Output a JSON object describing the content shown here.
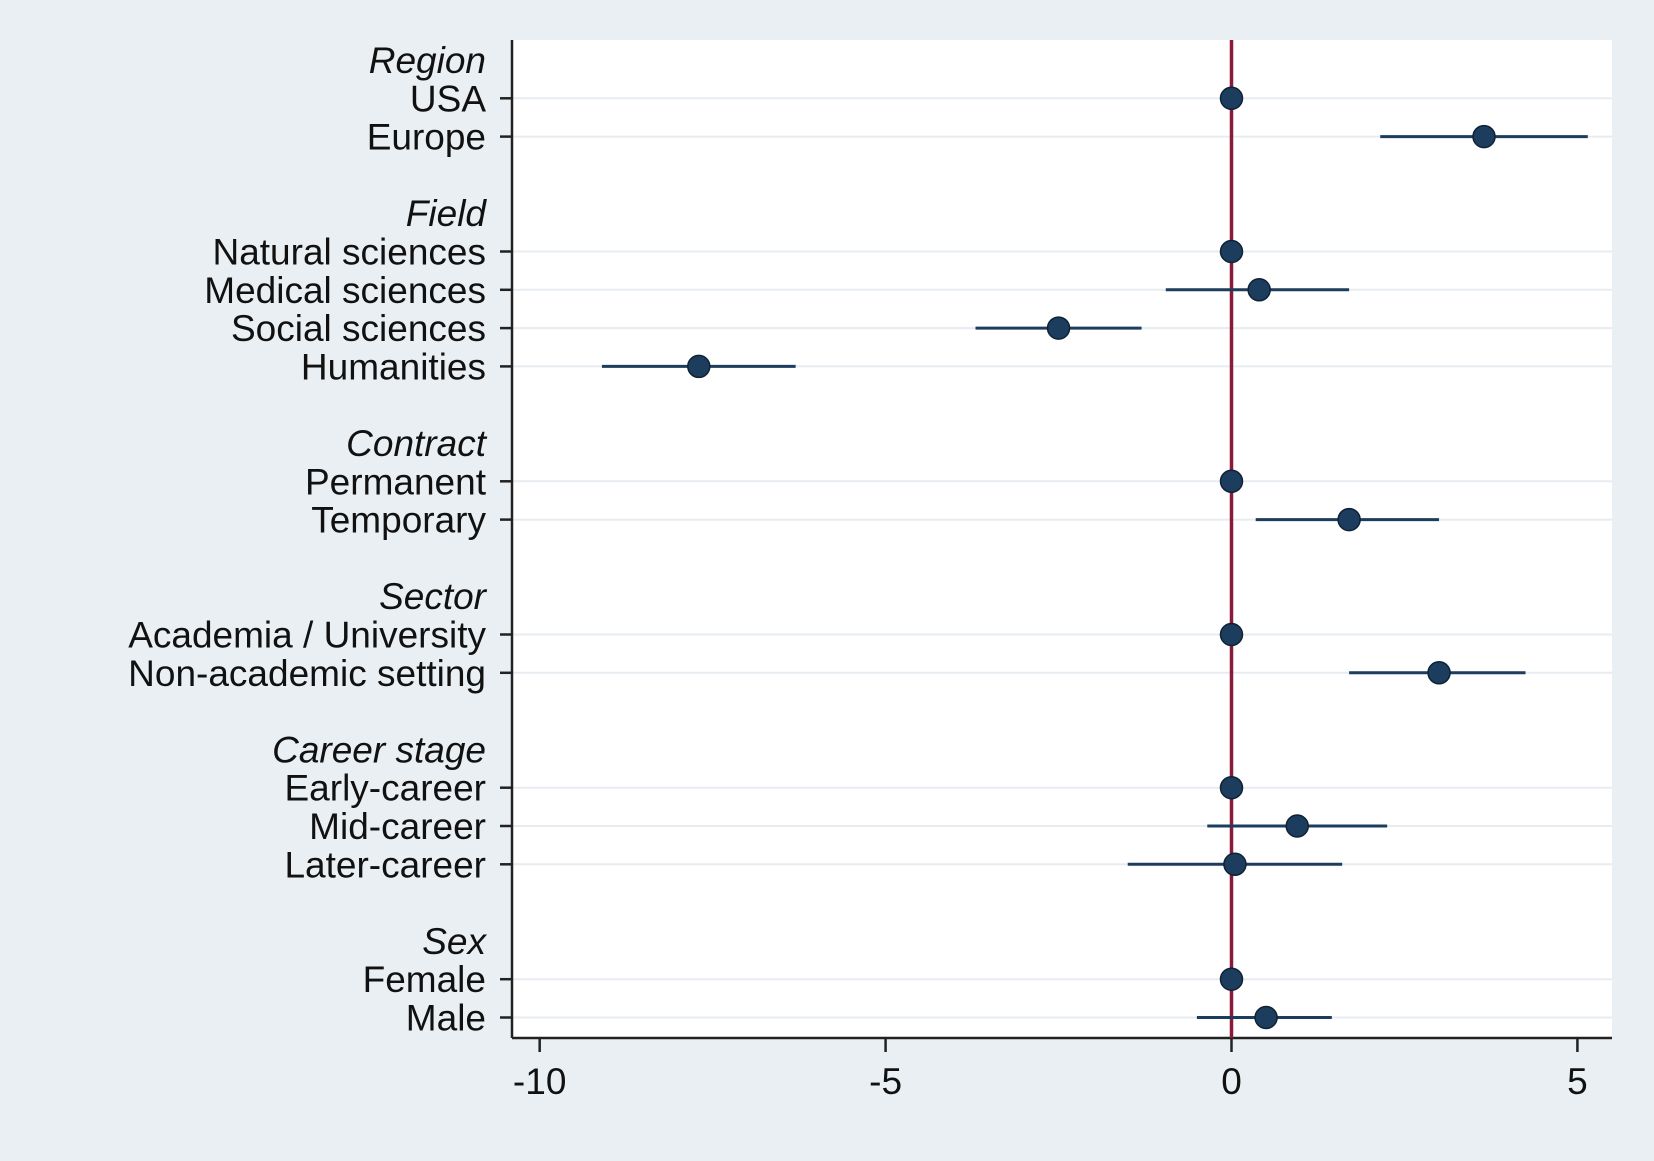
{
  "chart_data": {
    "type": "scatter",
    "subtype": "coefficient-plot",
    "title": "",
    "xlabel": "",
    "ylabel": "",
    "xlim": [
      -10.4,
      5.5
    ],
    "xticks": [
      -10,
      -5,
      0,
      5
    ],
    "xtick_labels": [
      "-10",
      "-5",
      "0",
      "5"
    ],
    "reference_line_x": 0,
    "grid": true,
    "legend": "none",
    "colors": {
      "point": "#1c3d5e",
      "ci": "#1c3d5e",
      "reference_line": "#8b1a3a",
      "plot_bg": "#ffffff",
      "outer_bg": "#e9eff3",
      "grid": "#e7ecf0",
      "axis": "#222222"
    },
    "groups": [
      {
        "label": "Region",
        "items": [
          {
            "label": "USA",
            "estimate": 0,
            "ci_low": 0,
            "ci_high": 0
          },
          {
            "label": "Europe",
            "estimate": 3.65,
            "ci_low": 2.15,
            "ci_high": 5.15
          }
        ]
      },
      {
        "label": "Field",
        "items": [
          {
            "label": "Natural sciences",
            "estimate": 0,
            "ci_low": 0,
            "ci_high": 0
          },
          {
            "label": "Medical sciences",
            "estimate": 0.4,
            "ci_low": -0.95,
            "ci_high": 1.7
          },
          {
            "label": "Social sciences",
            "estimate": -2.5,
            "ci_low": -3.7,
            "ci_high": -1.3
          },
          {
            "label": "Humanities",
            "estimate": -7.7,
            "ci_low": -9.1,
            "ci_high": -6.3
          }
        ]
      },
      {
        "label": "Contract",
        "items": [
          {
            "label": "Permanent",
            "estimate": 0,
            "ci_low": 0,
            "ci_high": 0
          },
          {
            "label": "Temporary",
            "estimate": 1.7,
            "ci_low": 0.35,
            "ci_high": 3.0
          }
        ]
      },
      {
        "label": "Sector",
        "items": [
          {
            "label": "Academia / University",
            "estimate": 0,
            "ci_low": 0,
            "ci_high": 0
          },
          {
            "label": "Non-academic setting",
            "estimate": 3.0,
            "ci_low": 1.7,
            "ci_high": 4.25
          }
        ]
      },
      {
        "label": "Career stage",
        "items": [
          {
            "label": "Early-career",
            "estimate": 0,
            "ci_low": 0,
            "ci_high": 0
          },
          {
            "label": "Mid-career",
            "estimate": 0.95,
            "ci_low": -0.35,
            "ci_high": 2.25
          },
          {
            "label": "Later-career",
            "estimate": 0.05,
            "ci_low": -1.5,
            "ci_high": 1.6
          }
        ]
      },
      {
        "label": "Sex",
        "items": [
          {
            "label": "Female",
            "estimate": 0,
            "ci_low": 0,
            "ci_high": 0
          },
          {
            "label": "Male",
            "estimate": 0.5,
            "ci_low": -0.5,
            "ci_high": 1.45
          }
        ]
      }
    ]
  }
}
